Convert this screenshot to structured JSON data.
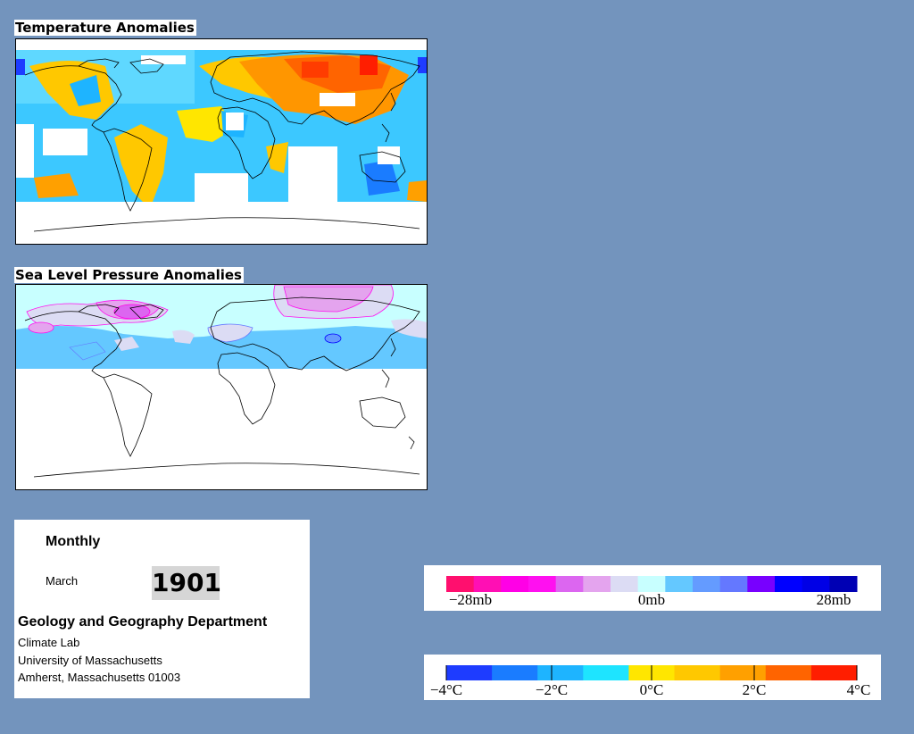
{
  "panels": {
    "temperature_title": "Temperature Anomalies",
    "pressure_title": "Sea Level Pressure Anomalies"
  },
  "info": {
    "frequency": "Monthly",
    "month": "March",
    "year": "1901",
    "department": "Geology and Geography Department",
    "lab": "Climate Lab",
    "university": "University of Massachusetts",
    "address": "Amherst, Massachusetts 01003"
  },
  "pressure_legend": {
    "labels": [
      "−28mb",
      "0mb",
      "28mb"
    ],
    "colors": [
      "#ff0f6e",
      "#ff0fb4",
      "#ff00e6",
      "#ff10f0",
      "#dc66f0",
      "#e4a4ee",
      "#dcdcf4",
      "#c8ffff",
      "#64c8ff",
      "#649bff",
      "#6478ff",
      "#7800ff",
      "#0000ff",
      "#0000e6",
      "#0000b4"
    ]
  },
  "temperature_legend": {
    "labels": [
      "−4°C",
      "−2°C",
      "0°C",
      "2°C",
      "4°C"
    ],
    "colors": [
      "#1e3cff",
      "#1a7cff",
      "#1eb4ff",
      "#1ee4ff",
      "#ffe600",
      "#ffc800",
      "#ffa000",
      "#ff6400",
      "#ff1e00"
    ]
  },
  "colors": {
    "background": "#7394bd",
    "warm_anomaly": "#ff9600",
    "cool_anomaly": "#3cc8ff",
    "high_pressure": "#d8a0f0",
    "low_pressure": "#4f78ff"
  }
}
